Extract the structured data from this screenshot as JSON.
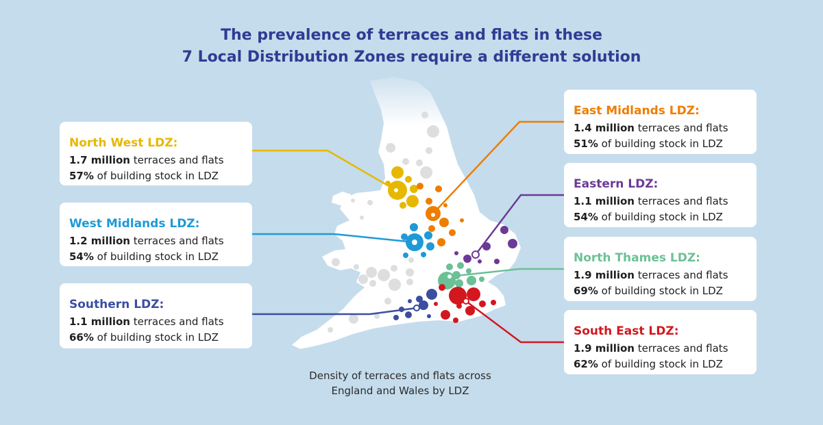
{
  "title": {
    "line1": "The prevalence of terraces and flats in these",
    "line2": "7 Local Distribution Zones require a different solution"
  },
  "caption": {
    "line1": "Density of terraces and flats across",
    "line2": "England and Wales by LDZ"
  },
  "zones": [
    {
      "key": "north-west",
      "name": "North West LDZ:",
      "stat1_bold": "1.7 million",
      "stat1_rest": " terraces and flats",
      "stat2_bold": "57%",
      "stat2_rest": " of building stock in LDZ",
      "color": "#e6b800"
    },
    {
      "key": "west-midlands",
      "name": "West Midlands LDZ:",
      "stat1_bold": "1.2 million",
      "stat1_rest": " terraces and flats",
      "stat2_bold": "54%",
      "stat2_rest": " of building stock in LDZ",
      "color": "#1e9ad6"
    },
    {
      "key": "southern",
      "name": "Southern LDZ:",
      "stat1_bold": "1.1 million",
      "stat1_rest": " terraces and flats",
      "stat2_bold": "66%",
      "stat2_rest": " of building stock in LDZ",
      "color": "#3b4ea0"
    },
    {
      "key": "east-midlands",
      "name": "East Midlands LDZ:",
      "stat1_bold": "1.4 million",
      "stat1_rest": " terraces and flats",
      "stat2_bold": "51%",
      "stat2_rest": " of building stock in LDZ",
      "color": "#ee7d00"
    },
    {
      "key": "eastern",
      "name": "Eastern LDZ:",
      "stat1_bold": "1.1 million",
      "stat1_rest": " terraces and flats",
      "stat2_bold": "54%",
      "stat2_rest": " of building stock in LDZ",
      "color": "#6b3a96"
    },
    {
      "key": "north-thames",
      "name": "North Thames LDZ:",
      "stat1_bold": "1.9 million",
      "stat1_rest": " terraces and flats",
      "stat2_bold": "69%",
      "stat2_rest": " of building stock in LDZ",
      "color": "#6cc096"
    },
    {
      "key": "south-east",
      "name": "South East LDZ:",
      "stat1_bold": "1.9 million",
      "stat1_rest": " terraces and flats",
      "stat2_bold": "62%",
      "stat2_rest": " of building stock in LDZ",
      "color": "#d3171e"
    }
  ]
}
